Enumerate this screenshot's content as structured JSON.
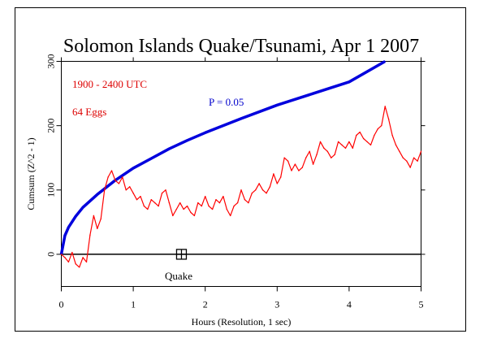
{
  "colors": {
    "background": "#ffffff",
    "frame": "#000000",
    "cumsum_line": "#ff0000",
    "significance_curve": "#0000dd",
    "annotation_red": "#dd0000",
    "annotation_blue": "#0000cc"
  },
  "chart_data": {
    "type": "line",
    "title": "Solomon Islands Quake/Tsunami, Apr 1 2007",
    "xlabel": "Hours (Resolution, 1 sec)",
    "ylabel": "Cumsum (Z^2 - 1)",
    "xlim": [
      0,
      5
    ],
    "ylim": [
      -50,
      300
    ],
    "x_ticks": [
      "0",
      "1",
      "2",
      "3",
      "4",
      "5"
    ],
    "y_ticks": [
      "0",
      "100",
      "200",
      "300"
    ],
    "annotations": {
      "time_range": "1900 - 2400 UTC",
      "eggs": "64 Eggs",
      "probability_label": "P = 0.05",
      "event_label": "Quake"
    },
    "event_marker": {
      "x": 1.67,
      "y": 0
    },
    "series": [
      {
        "kind": "significance_curve",
        "description_from_legend": "P = 0.05",
        "x": [
          0,
          0.05,
          0.1,
          0.2,
          0.3,
          0.5,
          0.75,
          1.0,
          1.25,
          1.5,
          1.75,
          2.0,
          2.5,
          3.0,
          3.5,
          4.0,
          4.5
        ],
        "values": [
          0,
          29,
          42,
          59,
          73,
          93,
          115,
          134,
          149,
          164,
          177,
          189,
          211,
          232,
          250,
          268,
          300
        ]
      },
      {
        "kind": "cumsum",
        "x": [
          0,
          0.05,
          0.1,
          0.15,
          0.2,
          0.25,
          0.3,
          0.35,
          0.4,
          0.45,
          0.5,
          0.55,
          0.6,
          0.65,
          0.7,
          0.75,
          0.8,
          0.85,
          0.9,
          0.95,
          1.0,
          1.05,
          1.1,
          1.15,
          1.2,
          1.25,
          1.3,
          1.35,
          1.4,
          1.45,
          1.5,
          1.55,
          1.6,
          1.65,
          1.7,
          1.75,
          1.8,
          1.85,
          1.9,
          1.95,
          2.0,
          2.05,
          2.1,
          2.15,
          2.2,
          2.25,
          2.3,
          2.35,
          2.4,
          2.45,
          2.5,
          2.55,
          2.6,
          2.65,
          2.7,
          2.75,
          2.8,
          2.85,
          2.9,
          2.95,
          3.0,
          3.05,
          3.1,
          3.15,
          3.2,
          3.25,
          3.3,
          3.35,
          3.4,
          3.45,
          3.5,
          3.55,
          3.6,
          3.65,
          3.7,
          3.75,
          3.8,
          3.85,
          3.9,
          3.95,
          4.0,
          4.05,
          4.1,
          4.15,
          4.2,
          4.25,
          4.3,
          4.35,
          4.4,
          4.45,
          4.5,
          4.55,
          4.6,
          4.65,
          4.7,
          4.75,
          4.8,
          4.85,
          4.9,
          4.95,
          5.0
        ],
        "values": [
          0,
          -5,
          -12,
          3,
          -15,
          -20,
          -5,
          -12,
          30,
          60,
          40,
          55,
          100,
          120,
          130,
          115,
          110,
          120,
          100,
          105,
          95,
          85,
          90,
          75,
          70,
          85,
          80,
          75,
          95,
          100,
          80,
          60,
          70,
          80,
          70,
          75,
          65,
          60,
          80,
          75,
          90,
          75,
          70,
          85,
          80,
          90,
          70,
          60,
          75,
          80,
          100,
          85,
          80,
          95,
          100,
          110,
          100,
          95,
          105,
          125,
          110,
          120,
          150,
          145,
          130,
          140,
          130,
          135,
          150,
          160,
          140,
          155,
          175,
          165,
          160,
          150,
          155,
          175,
          170,
          165,
          175,
          165,
          185,
          190,
          180,
          175,
          170,
          185,
          195,
          200,
          230,
          210,
          185,
          170,
          160,
          150,
          145,
          135,
          150,
          145,
          160
        ]
      }
    ]
  }
}
